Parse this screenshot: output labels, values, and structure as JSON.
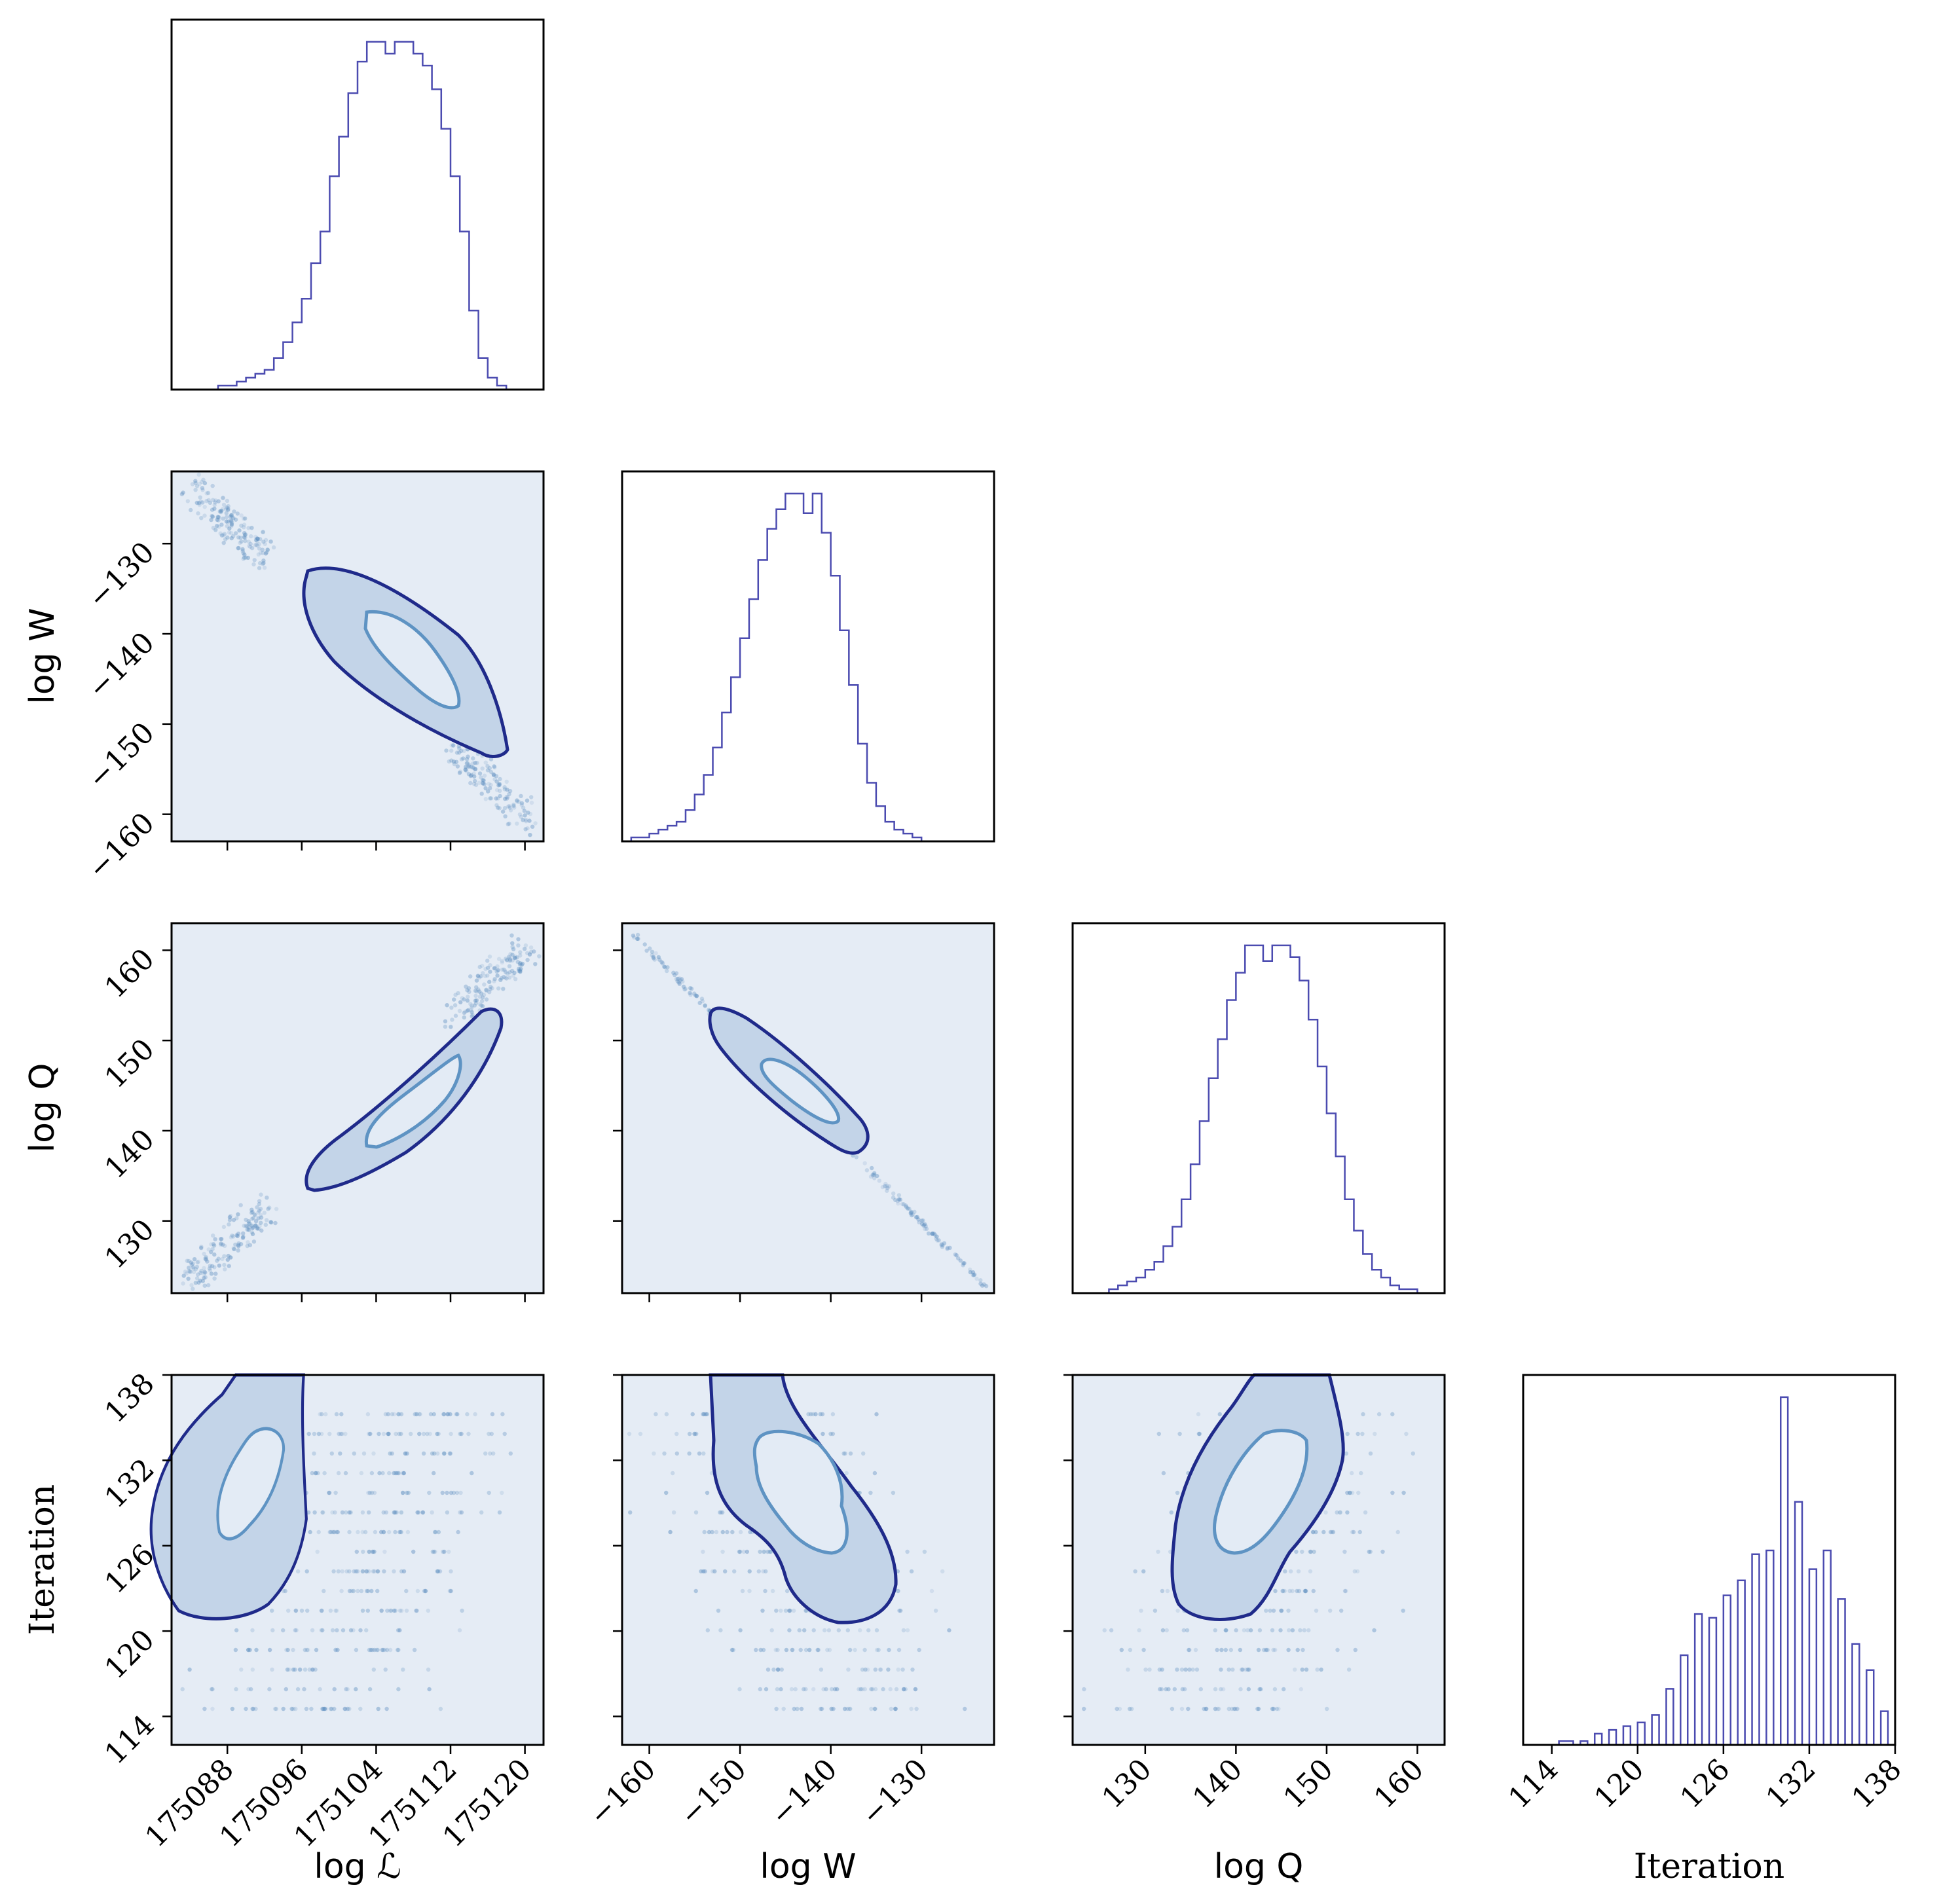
{
  "colors": {
    "panel_background": "#e5ecf5",
    "histogram_line": "#4b4bb0",
    "contour_outer_line": "#1f2a8a",
    "contour_outer_fill": "#c3d4e8",
    "contour_inner_line": "#5e93c3",
    "contour_inner_fill": "#e3ebf5",
    "scatter_points": "#5e8fc0"
  },
  "chart_data": {
    "type": "corner",
    "parameters": [
      {
        "key": "logL",
        "label": "log ℒ",
        "range": [
          175082,
          175122
        ],
        "ticks": [
          175088,
          175096,
          175104,
          175112,
          175120
        ],
        "tick_labels": [
          "175088",
          "175096",
          "175104",
          "175112",
          "175120"
        ]
      },
      {
        "key": "logW",
        "label": "log W",
        "range": [
          -163,
          -122
        ],
        "ticks": [
          -160,
          -150,
          -140,
          -130
        ],
        "tick_labels": [
          "−160",
          "−150",
          "−140",
          "−130"
        ]
      },
      {
        "key": "logQ",
        "label": "log Q",
        "range": [
          122,
          163
        ],
        "ticks": [
          130,
          140,
          150,
          160
        ],
        "tick_labels": [
          "130",
          "140",
          "150",
          "160"
        ]
      },
      {
        "key": "iter",
        "label": "Iteration",
        "range": [
          112,
          138
        ],
        "ticks": [
          114,
          120,
          126,
          132,
          138
        ],
        "tick_labels": [
          "114",
          "120",
          "126",
          "132",
          "138"
        ]
      }
    ],
    "histograms": {
      "logL": {
        "bin_edges_start": 175082,
        "bin_width": 1,
        "counts": [
          0,
          0,
          0,
          0,
          0,
          1,
          1,
          2,
          3,
          4,
          5,
          8,
          12,
          17,
          23,
          32,
          40,
          54,
          64,
          75,
          83,
          88,
          88,
          85,
          88,
          88,
          85,
          82,
          76,
          66,
          54,
          40,
          20,
          8,
          3,
          1,
          0,
          0,
          0,
          0
        ]
      },
      "logW": {
        "bin_edges_start": -163,
        "bin_width": 1,
        "counts": [
          0,
          1,
          1,
          2,
          3,
          4,
          5,
          8,
          12,
          17,
          24,
          33,
          42,
          52,
          62,
          72,
          80,
          85,
          89,
          89,
          84,
          89,
          79,
          68,
          54,
          40,
          25,
          15,
          9,
          5,
          3,
          2,
          1,
          0,
          0,
          0,
          0,
          0,
          0,
          0,
          0
        ]
      },
      "logQ": {
        "bin_edges_start": 122,
        "bin_width": 1,
        "counts": [
          0,
          0,
          0,
          0,
          1,
          2,
          3,
          4,
          6,
          8,
          12,
          17,
          24,
          33,
          44,
          55,
          65,
          75,
          82,
          89,
          89,
          85,
          89,
          89,
          86,
          80,
          70,
          58,
          46,
          35,
          24,
          16,
          10,
          6,
          4,
          2,
          1,
          1,
          0,
          0,
          0
        ]
      },
      "iter": {
        "bin_edges_start": 112,
        "bin_width": 0.5,
        "counts": [
          0,
          0,
          0,
          0,
          0,
          1,
          1,
          0,
          1,
          0,
          3,
          0,
          4,
          0,
          5,
          0,
          6,
          0,
          8,
          0,
          15,
          0,
          24,
          0,
          35,
          0,
          34,
          0,
          40,
          0,
          44,
          0,
          51,
          0,
          52,
          0,
          93,
          0,
          65,
          0,
          47,
          0,
          52,
          0,
          39,
          0,
          27,
          0,
          20,
          0,
          9,
          0,
          11
        ]
      }
    },
    "contour_levels": [
      "inner",
      "outer"
    ],
    "title": "",
    "legend": "none"
  }
}
